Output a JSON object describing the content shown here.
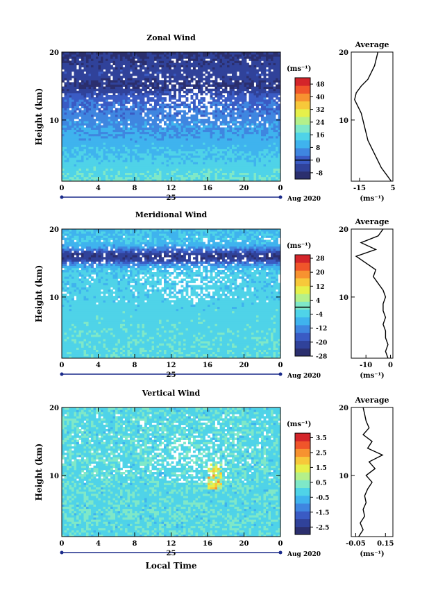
{
  "figure": {
    "xaxis_label": "Local Time",
    "date_suffix": "Aug 2020",
    "day_label": "25",
    "average_title": "Average",
    "unit_label": "(ms⁻¹)"
  },
  "chart_data": [
    {
      "type": "heatmap",
      "title": "Zonal Wind",
      "xlabel": "",
      "ylabel": "Height (km)",
      "x_ticks": [
        "0",
        "4",
        "8",
        "12",
        "16",
        "20",
        "0"
      ],
      "xlim": [
        0,
        24
      ],
      "ylim": [
        1,
        20
      ],
      "y_ticks": [
        "10",
        "20"
      ],
      "colorbar": {
        "unit": "(ms⁻¹)",
        "min": -12,
        "max": 52,
        "ticks": [
          "-8",
          "0",
          "8",
          "16",
          "24",
          "32",
          "40",
          "48"
        ],
        "zero_line": 0,
        "colors": [
          "#2b2f6e",
          "#30429a",
          "#3a5bc4",
          "#3f86e0",
          "#3fb3ee",
          "#4fd3e8",
          "#7fe8c8",
          "#b4f08a",
          "#e6f04a",
          "#f7c83a",
          "#f79230",
          "#f0552a",
          "#d4252a"
        ]
      },
      "field": {
        "base": 18,
        "top": -8,
        "jetHeight": 15,
        "jetSpeed": -6
      },
      "average": {
        "title": "Average",
        "xlabel": "(ms⁻¹)",
        "x_ticks": [
          "-15",
          "5"
        ],
        "xlim": [
          -20,
          5
        ],
        "ylim": [
          1,
          20
        ],
        "y_ticks": [
          "10",
          "20"
        ],
        "heights": [
          1,
          2,
          3,
          4,
          5,
          6,
          7,
          8,
          9,
          10,
          11,
          12,
          13,
          14,
          15,
          16,
          17,
          18,
          19,
          20
        ],
        "values": [
          4,
          1,
          -2,
          -4,
          -6,
          -8,
          -10,
          -11,
          -12,
          -13,
          -14,
          -16,
          -18,
          -17,
          -14,
          -10,
          -8,
          -6,
          -5,
          -4
        ]
      }
    },
    {
      "type": "heatmap",
      "title": "Meridional Wind",
      "xlabel": "",
      "ylabel": "Height (km)",
      "x_ticks": [
        "0",
        "4",
        "8",
        "12",
        "16",
        "20",
        "0"
      ],
      "xlim": [
        0,
        24
      ],
      "ylim": [
        1,
        20
      ],
      "y_ticks": [
        "10",
        "20"
      ],
      "colorbar": {
        "unit": "(ms⁻¹)",
        "min": -28,
        "max": 30,
        "ticks": [
          "-28",
          "-20",
          "-12",
          "-4",
          "4",
          "12",
          "20",
          "28"
        ],
        "zero_line": 0,
        "colors": [
          "#2b2f6e",
          "#30429a",
          "#3a5bc4",
          "#3f86e0",
          "#3fb3ee",
          "#4fd3e8",
          "#7fe8c8",
          "#b4f08a",
          "#e6f04a",
          "#f7c83a",
          "#f79230",
          "#f0552a",
          "#d4252a"
        ]
      },
      "field": {
        "base": -2,
        "top": -6,
        "jetHeight": 16,
        "jetSpeed": -18
      },
      "average": {
        "title": "Average",
        "xlabel": "(ms⁻¹)",
        "x_ticks": [
          "-10",
          "0"
        ],
        "xlim": [
          -16,
          1
        ],
        "ylim": [
          1,
          20
        ],
        "y_ticks": [
          "10",
          "20"
        ],
        "heights": [
          1,
          2,
          3,
          4,
          5,
          6,
          7,
          8,
          9,
          10,
          11,
          12,
          13,
          14,
          15,
          16,
          17,
          18,
          19,
          20
        ],
        "values": [
          -1,
          -2,
          -1,
          -2,
          -2,
          -3,
          -2,
          -3,
          -3,
          -2,
          -3,
          -5,
          -7,
          -6,
          -10,
          -14,
          -6,
          -12,
          -5,
          -3
        ]
      }
    },
    {
      "type": "heatmap",
      "title": "Vertical Wind",
      "xlabel": "Local Time",
      "ylabel": "Height (km)",
      "x_ticks": [
        "0",
        "4",
        "8",
        "12",
        "16",
        "20",
        "0"
      ],
      "xlim": [
        0,
        24
      ],
      "ylim": [
        1,
        20
      ],
      "y_ticks": [
        "10",
        "20"
      ],
      "colorbar": {
        "unit": "(ms⁻¹)",
        "min": -3.0,
        "max": 3.8,
        "ticks": [
          "-2.5",
          "-1.5",
          "-0.5",
          "0.5",
          "1.5",
          "2.5",
          "3.5"
        ],
        "zero_line": null,
        "colors": [
          "#2b2f6e",
          "#30429a",
          "#3a5bc4",
          "#3f86e0",
          "#3fb3ee",
          "#4fd3e8",
          "#7fe8c8",
          "#b4f08a",
          "#e6f04a",
          "#f7c83a",
          "#f79230",
          "#f0552a",
          "#d4252a"
        ]
      },
      "field": {
        "base": 0,
        "top": 0,
        "jetHeight": 12,
        "jetSpeed": 0
      },
      "average": {
        "title": "Average",
        "xlabel": "(ms⁻¹)",
        "x_ticks": [
          "-0.05",
          "0.15"
        ],
        "xlim": [
          -0.08,
          0.2
        ],
        "ylim": [
          1,
          20
        ],
        "y_ticks": [
          "10",
          "20"
        ],
        "heights": [
          1,
          2,
          3,
          4,
          5,
          6,
          7,
          8,
          9,
          10,
          11,
          12,
          13,
          14,
          15,
          16,
          17,
          18,
          19,
          20
        ],
        "values": [
          -0.03,
          0.0,
          -0.02,
          0.01,
          0.0,
          0.02,
          0.01,
          0.03,
          0.06,
          0.02,
          0.08,
          0.04,
          0.13,
          0.03,
          0.06,
          0.0,
          0.04,
          0.02,
          0.01,
          0.0
        ]
      }
    }
  ]
}
